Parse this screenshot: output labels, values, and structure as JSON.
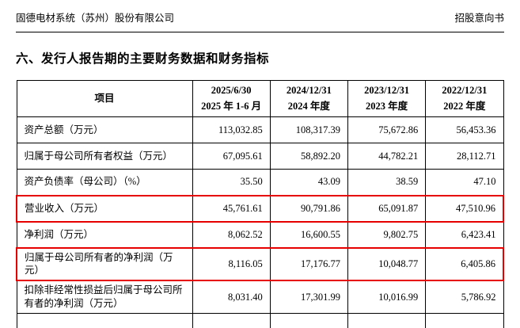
{
  "header": {
    "company": "固德电材系统（苏州）股份有限公司",
    "doc_type": "招股意向书"
  },
  "section_title": "六、发行人报告期的主要财务数据和财务指标",
  "table": {
    "item_header": "项目",
    "columns": [
      {
        "line1": "2025/6/30",
        "line2": "2025 年 1-6 月"
      },
      {
        "line1": "2024/12/31",
        "line2": "2024 年度"
      },
      {
        "line1": "2023/12/31",
        "line2": "2023 年度"
      },
      {
        "line1": "2022/12/31",
        "line2": "2022 年度"
      }
    ],
    "rows": [
      {
        "label": "资产总额（万元）",
        "values": [
          "113,032.85",
          "108,317.39",
          "75,672.86",
          "56,453.36"
        ],
        "highlighted": false
      },
      {
        "label": "归属于母公司所有者权益（万元）",
        "values": [
          "67,095.61",
          "58,892.20",
          "44,782.21",
          "28,112.71"
        ],
        "highlighted": false
      },
      {
        "label": "资产负债率（母公司）（%）",
        "values": [
          "35.50",
          "43.09",
          "38.59",
          "47.10"
        ],
        "highlighted": false
      },
      {
        "label": "营业收入（万元）",
        "values": [
          "45,761.61",
          "90,791.86",
          "65,091.87",
          "47,510.96"
        ],
        "highlighted": true
      },
      {
        "label": "净利润（万元）",
        "values": [
          "8,062.52",
          "16,600.55",
          "9,802.75",
          "6,423.41"
        ],
        "highlighted": false
      },
      {
        "label": "归属于母公司所有者的净利润（万元）",
        "values": [
          "8,116.05",
          "17,176.77",
          "10,048.77",
          "6,405.86"
        ],
        "highlighted": true
      },
      {
        "label": "扣除非经常性损益后归属于母公司所有者的净利润（万元）",
        "values": [
          "8,031.40",
          "17,301.99",
          "10,016.99",
          "5,786.92"
        ],
        "highlighted": false
      }
    ],
    "annotation_color": "#e60000"
  }
}
